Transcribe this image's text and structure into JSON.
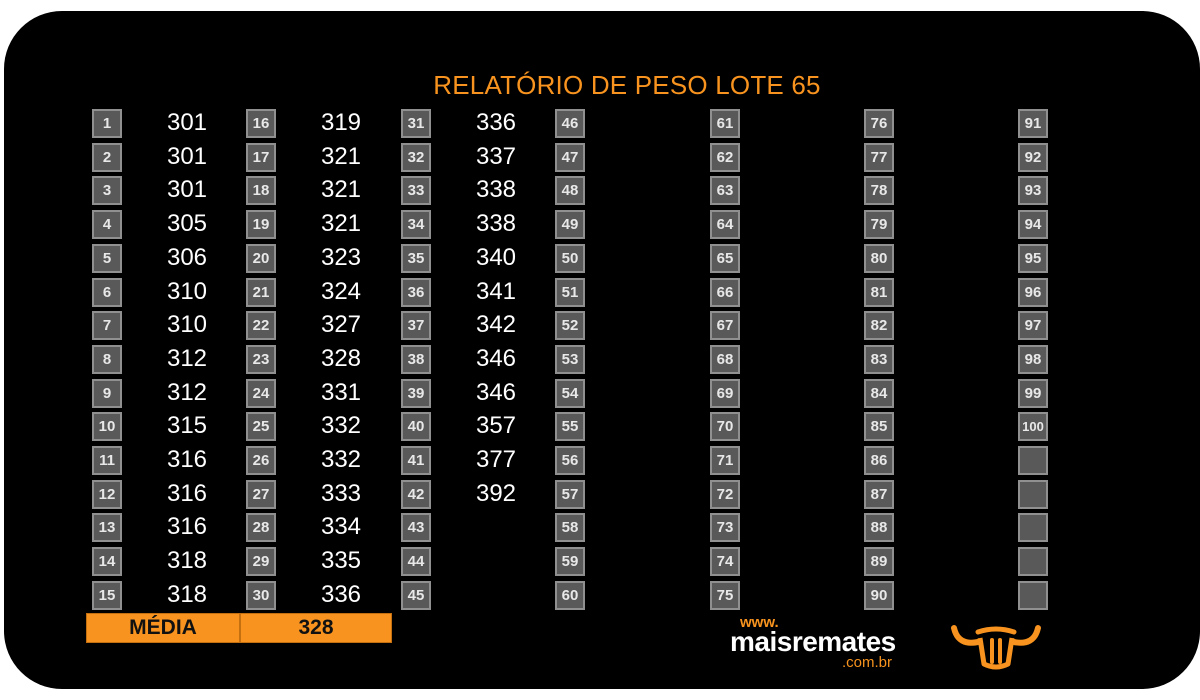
{
  "title": "RELATÓRIO DE PESO LOTE 65",
  "accent_color": "#F7931E",
  "columns": [
    {
      "numbers": [
        "1",
        "2",
        "3",
        "4",
        "5",
        "6",
        "7",
        "8",
        "9",
        "10",
        "11",
        "12",
        "13",
        "14",
        "15"
      ],
      "values": [
        "301",
        "301",
        "301",
        "305",
        "306",
        "310",
        "310",
        "312",
        "312",
        "315",
        "316",
        "316",
        "316",
        "318",
        "318"
      ]
    },
    {
      "numbers": [
        "16",
        "17",
        "18",
        "19",
        "20",
        "21",
        "22",
        "23",
        "24",
        "25",
        "26",
        "27",
        "28",
        "29",
        "30"
      ],
      "values": [
        "319",
        "321",
        "321",
        "321",
        "323",
        "324",
        "327",
        "328",
        "331",
        "332",
        "332",
        "333",
        "334",
        "335",
        "336"
      ]
    },
    {
      "numbers": [
        "31",
        "32",
        "33",
        "34",
        "35",
        "36",
        "37",
        "38",
        "39",
        "40",
        "41",
        "42",
        "43",
        "44",
        "45"
      ],
      "values": [
        "336",
        "337",
        "338",
        "338",
        "340",
        "341",
        "342",
        "346",
        "346",
        "357",
        "377",
        "392",
        "",
        "",
        ""
      ]
    },
    {
      "numbers": [
        "46",
        "47",
        "48",
        "49",
        "50",
        "51",
        "52",
        "53",
        "54",
        "55",
        "56",
        "57",
        "58",
        "59",
        "60"
      ],
      "values": []
    },
    {
      "numbers": [
        "61",
        "62",
        "63",
        "64",
        "65",
        "66",
        "67",
        "68",
        "69",
        "70",
        "71",
        "72",
        "73",
        "74",
        "75"
      ],
      "values": []
    },
    {
      "numbers": [
        "76",
        "77",
        "78",
        "79",
        "80",
        "81",
        "82",
        "83",
        "84",
        "85",
        "86",
        "87",
        "88",
        "89",
        "90"
      ],
      "values": []
    },
    {
      "numbers": [
        "91",
        "92",
        "93",
        "94",
        "95",
        "96",
        "97",
        "98",
        "99",
        "100",
        "",
        "",
        "",
        "",
        ""
      ],
      "values": []
    }
  ],
  "media": {
    "label": "MÉDIA",
    "value": "328"
  },
  "logo": {
    "www": "www.",
    "name": "maisremates",
    "domain": ".com.br",
    "icon": "bull-head-icon"
  }
}
